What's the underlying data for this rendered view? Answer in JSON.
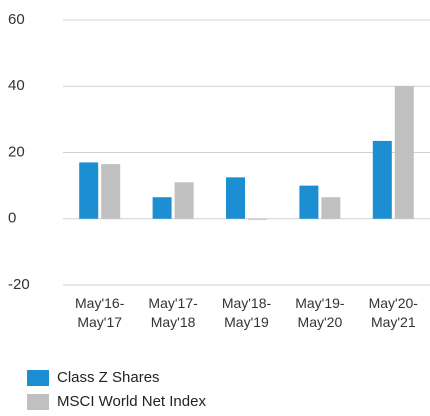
{
  "chart_data": {
    "type": "bar",
    "categories": [
      "May'16-\nMay'17",
      "May'17-\nMay'18",
      "May'18-\nMay'19",
      "May'19-\nMay'20",
      "May'20-\nMay'21"
    ],
    "series": [
      {
        "name": "Class Z Shares",
        "color": "#1b8fd2",
        "values": [
          17,
          6.5,
          12.5,
          10,
          23.5
        ]
      },
      {
        "name": "MSCI World Net Index",
        "color": "#c0c0c0",
        "values": [
          16.5,
          11,
          -0.3,
          6.5,
          40
        ]
      }
    ],
    "ylim": [
      -20,
      60
    ],
    "yticks": [
      -20,
      0,
      20,
      40,
      60
    ],
    "grid": true
  }
}
